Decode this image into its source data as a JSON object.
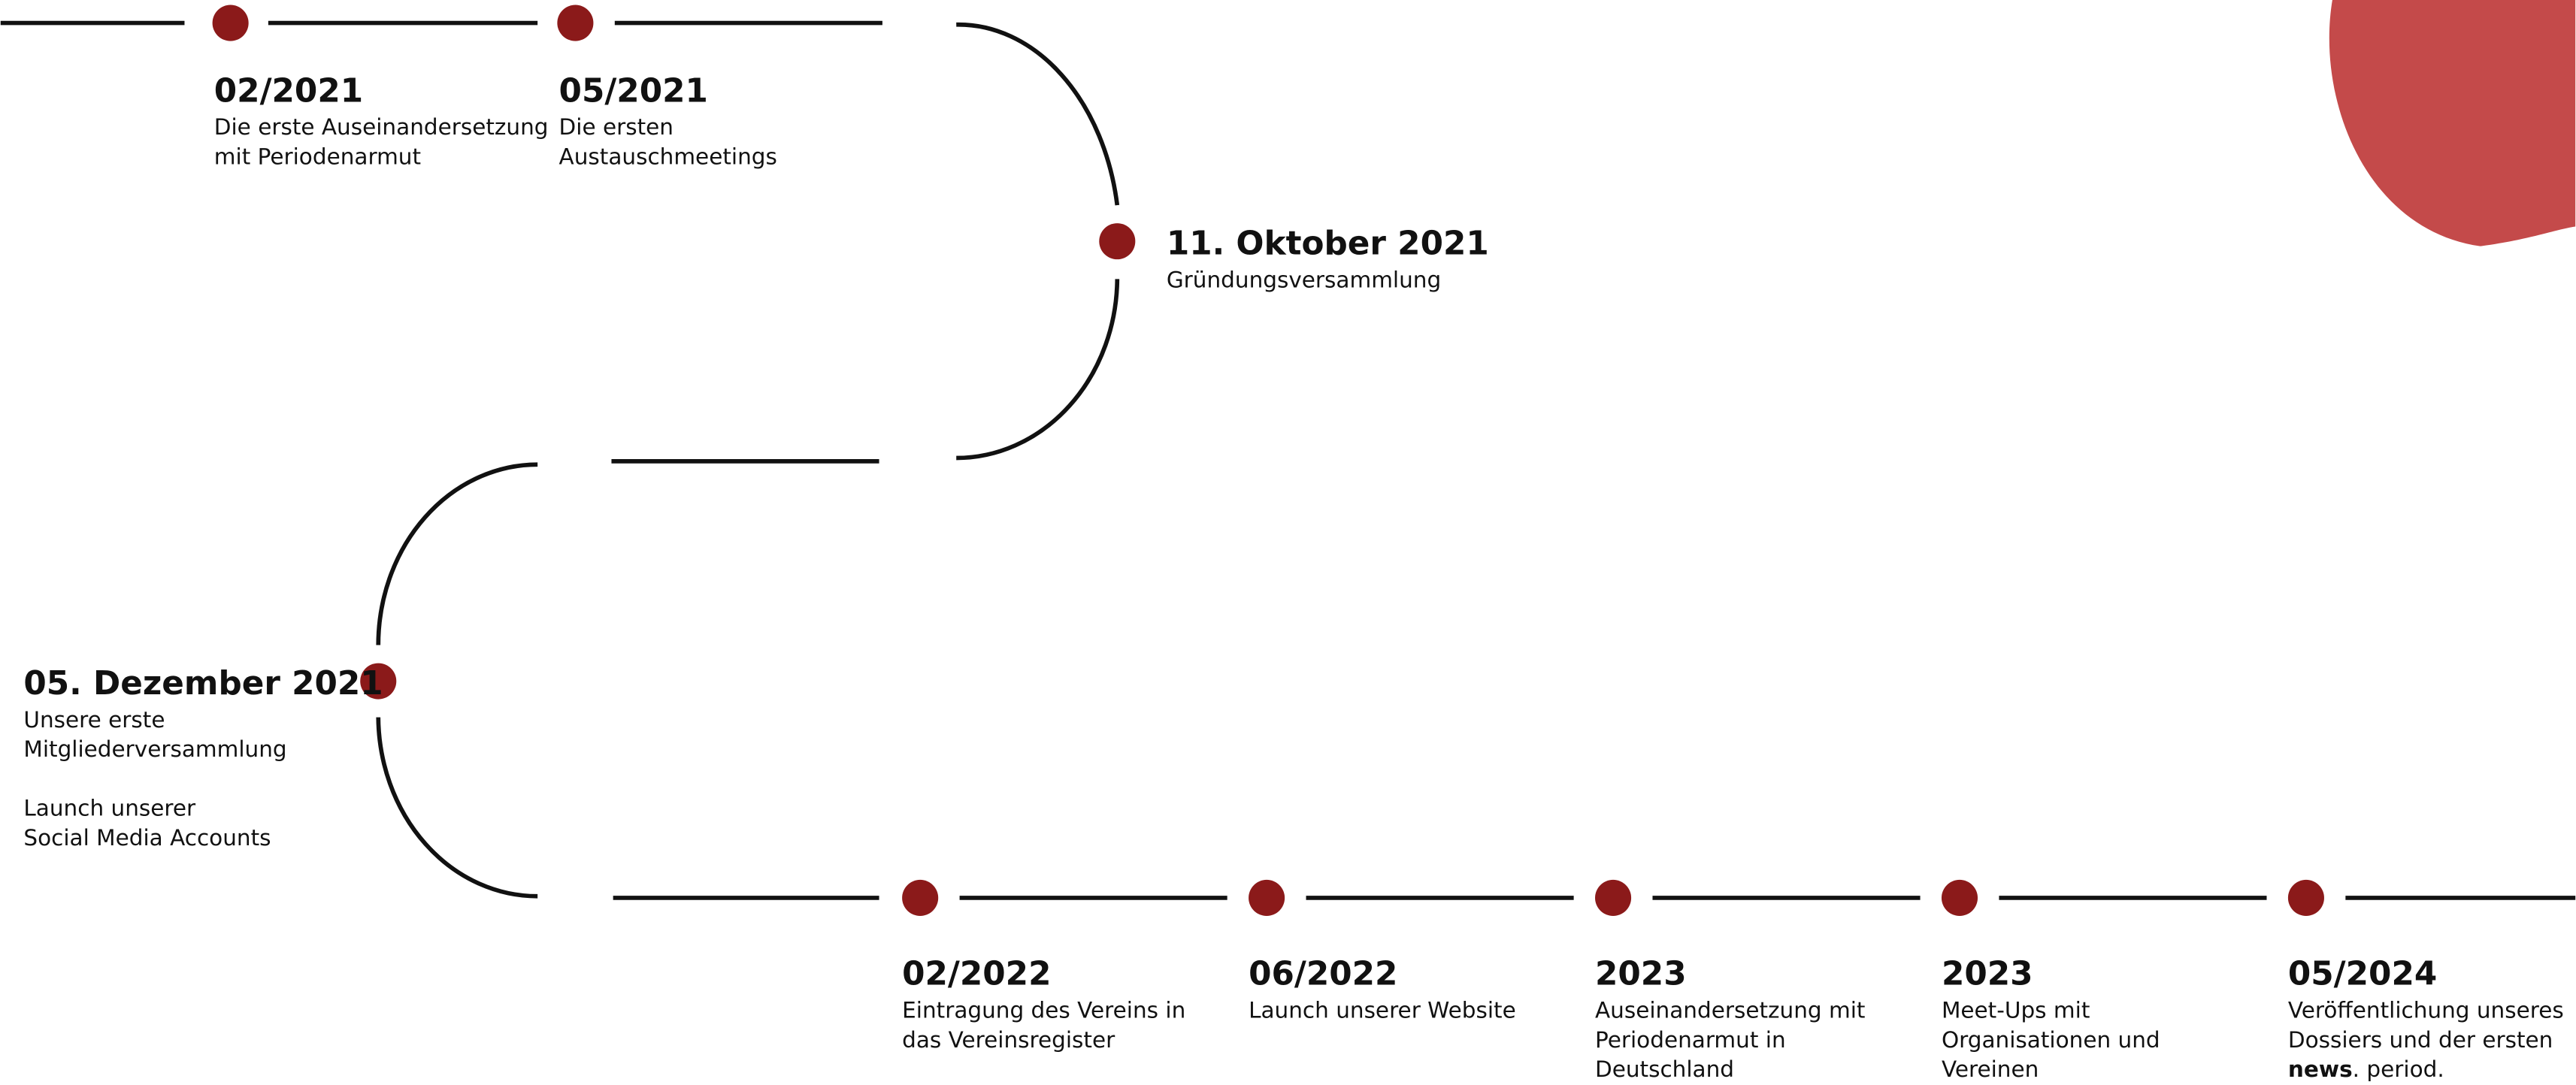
{
  "timeline": {
    "events": [
      {
        "date": "02/2021",
        "paragraphs": [
          [
            "Die erste Auseinandersetzung",
            "mit Periodenarmut"
          ]
        ]
      },
      {
        "date": "05/2021",
        "paragraphs": [
          [
            "Die ersten",
            "Austauschmeetings"
          ]
        ]
      },
      {
        "date": "11. Oktober 2021",
        "paragraphs": [
          [
            "Gründungsversammlung"
          ]
        ]
      },
      {
        "date": "05. Dezember 2021",
        "paragraphs": [
          [
            "Unsere erste",
            "Mitgliederversammlung"
          ],
          [
            "Launch unserer",
            "Social Media Accounts"
          ]
        ]
      },
      {
        "date": "02/2022",
        "paragraphs": [
          [
            "Eintragung des Vereins in",
            "das Vereinsregister"
          ]
        ]
      },
      {
        "date": "06/2022",
        "paragraphs": [
          [
            "Launch unserer Website"
          ]
        ]
      },
      {
        "date": "2023",
        "paragraphs": [
          [
            "Auseinandersetzung mit",
            "Periodenarmut in",
            "Deutschland"
          ]
        ]
      },
      {
        "date": "2023",
        "paragraphs": [
          [
            "Meet-Ups mit",
            "Organisationen und",
            "Vereinen"
          ]
        ]
      },
      {
        "date": "05/2024",
        "paragraphs": [
          [
            "Veröffentlichung unseres",
            "Dossiers und der ersten",
            {
              "bold": "news",
              "text": ". period."
            }
          ]
        ]
      }
    ]
  }
}
